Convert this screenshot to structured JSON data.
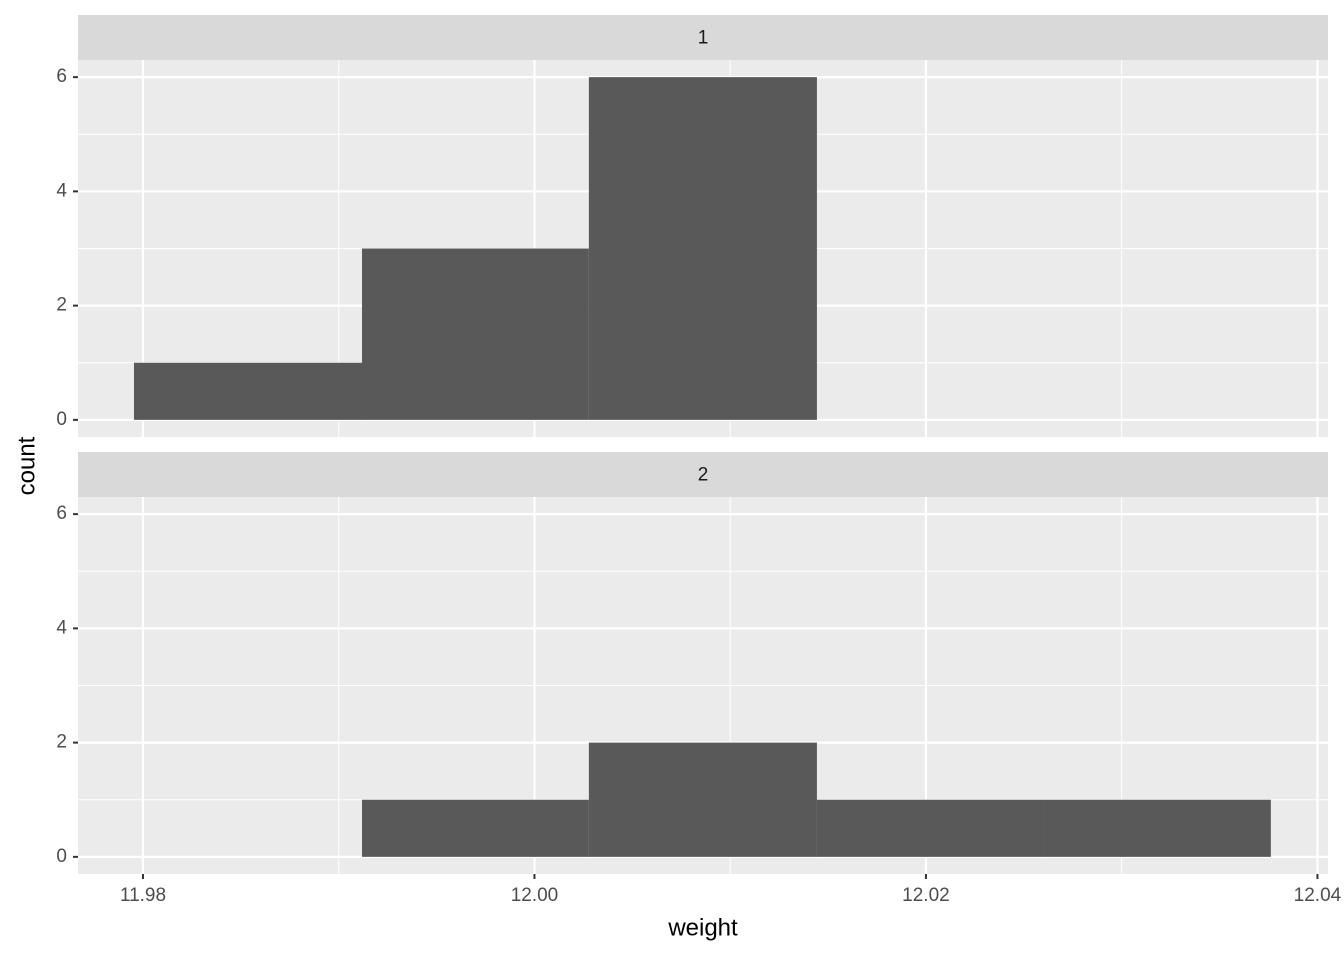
{
  "chart_data": {
    "type": "histogram",
    "xlabel": "weight",
    "ylabel": "count",
    "bins": [
      11.97954,
      11.99119,
      12.00278,
      12.01443,
      12.02603,
      12.03762
    ],
    "panels": [
      {
        "strip": "1",
        "values": [
          1,
          3,
          6,
          0,
          0
        ]
      },
      {
        "strip": "2",
        "values": [
          0,
          1,
          2,
          1,
          1
        ]
      }
    ],
    "color": "#595959",
    "xlim": [
      11.97668,
      12.04054
    ],
    "xticks": [
      11.98,
      {
        "value": 12,
        "label": "12.00"
      },
      12.02,
      12.04
    ],
    "ylim": [
      -0.3,
      6.3
    ],
    "yticks": [
      0,
      2,
      4,
      6
    ],
    "grid": true
  }
}
